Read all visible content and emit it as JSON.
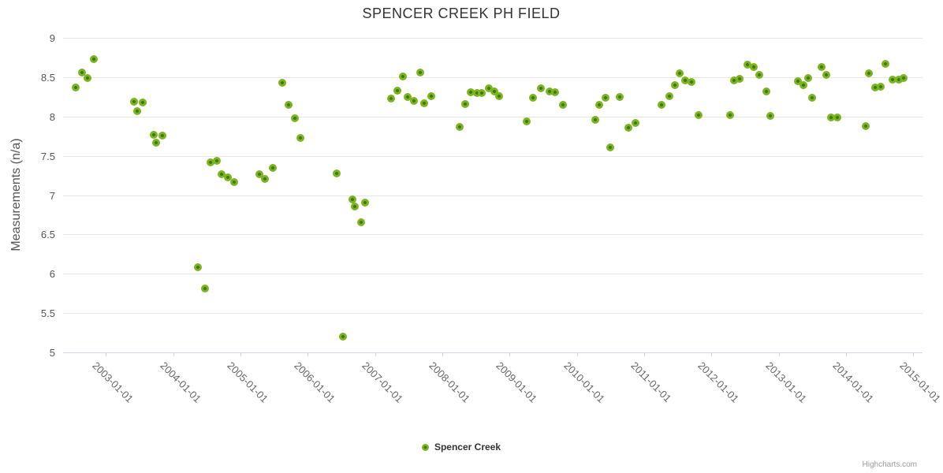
{
  "chart_data": {
    "type": "scatter",
    "title": "SPENCER CREEK PH FIELD",
    "xlabel": "",
    "ylabel": "Measurements (n/a)",
    "ylim": [
      5,
      9
    ],
    "y_ticks": [
      9,
      8.5,
      8,
      7.5,
      7,
      6.5,
      6,
      5.5,
      5
    ],
    "x_ticks": [
      "2003-01-01",
      "2004-01-01",
      "2005-01-01",
      "2006-01-01",
      "2007-01-01",
      "2008-01-01",
      "2009-01-01",
      "2010-01-01",
      "2011-01-01",
      "2012-01-01",
      "2013-01-01",
      "2014-01-01",
      "2015-01-01"
    ],
    "x_range_decimal_years": [
      2002.34,
      2015.14
    ],
    "grid": true,
    "legend_position": "bottom-center",
    "series": [
      {
        "name": "Spencer Creek",
        "color": "#7cb41f",
        "marker_core_color": "#3e7a08",
        "points": [
          [
            "2002-07-20",
            8.37
          ],
          [
            "2002-08-24",
            8.56
          ],
          [
            "2002-09-22",
            8.49
          ],
          [
            "2002-10-28",
            8.73
          ],
          [
            "2003-06-02",
            8.19
          ],
          [
            "2003-06-19",
            8.07
          ],
          [
            "2003-07-19",
            8.18
          ],
          [
            "2003-09-17",
            7.77
          ],
          [
            "2003-10-01",
            7.67
          ],
          [
            "2003-11-03",
            7.76
          ],
          [
            "2004-05-13",
            6.08
          ],
          [
            "2004-06-21",
            5.81
          ],
          [
            "2004-07-20",
            7.42
          ],
          [
            "2004-08-26",
            7.44
          ],
          [
            "2004-09-20",
            7.27
          ],
          [
            "2004-10-25",
            7.23
          ],
          [
            "2004-11-26",
            7.17
          ],
          [
            "2005-04-14",
            7.27
          ],
          [
            "2005-05-13",
            7.21
          ],
          [
            "2005-06-25",
            7.35
          ],
          [
            "2005-08-15",
            8.43
          ],
          [
            "2005-09-19",
            8.15
          ],
          [
            "2005-10-23",
            7.98
          ],
          [
            "2005-11-24",
            7.73
          ],
          [
            "2006-06-05",
            7.28
          ],
          [
            "2006-07-10",
            5.2
          ],
          [
            "2006-08-29",
            6.94
          ],
          [
            "2006-09-13",
            6.85
          ],
          [
            "2006-10-16",
            6.65
          ],
          [
            "2006-11-06",
            6.9
          ],
          [
            "2007-03-27",
            8.23
          ],
          [
            "2007-04-30",
            8.33
          ],
          [
            "2007-05-31",
            8.51
          ],
          [
            "2007-06-25",
            8.25
          ],
          [
            "2007-07-30",
            8.2
          ],
          [
            "2007-09-02",
            8.56
          ],
          [
            "2007-09-24",
            8.17
          ],
          [
            "2007-10-31",
            8.26
          ],
          [
            "2008-04-03",
            7.87
          ],
          [
            "2008-05-02",
            8.16
          ],
          [
            "2008-06-02",
            8.31
          ],
          [
            "2008-07-07",
            8.3
          ],
          [
            "2008-08-03",
            8.3
          ],
          [
            "2008-09-10",
            8.36
          ],
          [
            "2008-10-09",
            8.32
          ],
          [
            "2008-11-06",
            8.26
          ],
          [
            "2009-04-03",
            7.94
          ],
          [
            "2009-05-07",
            8.24
          ],
          [
            "2009-06-18",
            8.36
          ],
          [
            "2009-08-06",
            8.32
          ],
          [
            "2009-09-04",
            8.31
          ],
          [
            "2009-10-17",
            8.15
          ],
          [
            "2010-04-10",
            7.96
          ],
          [
            "2010-05-01",
            8.15
          ],
          [
            "2010-06-03",
            8.24
          ],
          [
            "2010-06-29",
            7.61
          ],
          [
            "2010-08-21",
            8.25
          ],
          [
            "2010-10-09",
            7.86
          ],
          [
            "2010-11-13",
            7.92
          ],
          [
            "2011-04-05",
            8.15
          ],
          [
            "2011-05-16",
            8.26
          ],
          [
            "2011-06-16",
            8.4
          ],
          [
            "2011-07-12",
            8.55
          ],
          [
            "2011-08-10",
            8.46
          ],
          [
            "2011-09-14",
            8.44
          ],
          [
            "2011-10-21",
            8.02
          ],
          [
            "2012-04-12",
            8.02
          ],
          [
            "2012-05-03",
            8.46
          ],
          [
            "2012-06-03",
            8.48
          ],
          [
            "2012-07-13",
            8.66
          ],
          [
            "2012-08-19",
            8.63
          ],
          [
            "2012-09-19",
            8.53
          ],
          [
            "2012-10-24",
            8.32
          ],
          [
            "2012-11-15",
            8.01
          ],
          [
            "2013-04-12",
            8.45
          ],
          [
            "2013-05-12",
            8.4
          ],
          [
            "2013-06-11",
            8.49
          ],
          [
            "2013-06-30",
            8.24
          ],
          [
            "2013-08-20",
            8.63
          ],
          [
            "2013-09-15",
            8.53
          ],
          [
            "2013-10-12",
            7.99
          ],
          [
            "2013-11-15",
            7.99
          ],
          [
            "2014-04-18",
            7.88
          ],
          [
            "2014-05-02",
            8.55
          ],
          [
            "2014-06-08",
            8.37
          ],
          [
            "2014-07-07",
            8.38
          ],
          [
            "2014-08-01",
            8.67
          ],
          [
            "2014-09-11",
            8.47
          ],
          [
            "2014-10-14",
            8.47
          ],
          [
            "2014-11-11",
            8.49
          ]
        ]
      }
    ]
  },
  "credits": {
    "label": "Highcharts.com"
  },
  "colors": {
    "background": "#ffffff",
    "marker_outer": "#7cb41f",
    "marker_core": "#3e7a08",
    "gridline": "#e6e6e6",
    "axis_line": "#ccd6eb",
    "title_text": "#333333",
    "axis_label_text": "#666666",
    "y_axis_title_text": "#555555",
    "legend_text": "#333333",
    "credits_text": "#999999"
  }
}
